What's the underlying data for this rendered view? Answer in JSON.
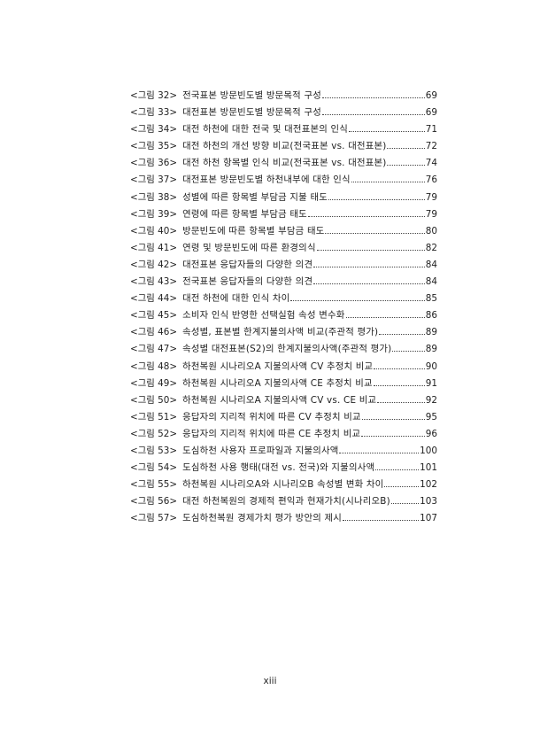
{
  "entries": [
    {
      "label": "<그림 32>",
      "title": "전국표본 방문빈도별 방문목적 구성",
      "page": "69"
    },
    {
      "label": "<그림 33>",
      "title": "대전표본 방문빈도별 방문목적 구성",
      "page": "69"
    },
    {
      "label": "<그림 34>",
      "title": "대전 하천에 대한 전국 및 대전표본의 인식",
      "page": "71"
    },
    {
      "label": "<그림 35>",
      "title": "대전 하천의 개선 방향 비교(전국표본 vs. 대전표본)",
      "page": "72"
    },
    {
      "label": "<그림 36>",
      "title": "대전 하천 항목별 인식 비교(전국표본 vs. 대전표본)",
      "page": "74"
    },
    {
      "label": "<그림 37>",
      "title": "대전표본 방문빈도별 하천내부에 대한 인식",
      "page": "76"
    },
    {
      "label": "<그림 38>",
      "title": "성별에 따른 항목별 부담금 지불 태도",
      "page": "79"
    },
    {
      "label": "<그림 39>",
      "title": "연령에 따른 항목별 부담금 태도",
      "page": "79"
    },
    {
      "label": "<그림 40>",
      "title": "방문빈도에 따른 항목별 부담금 태도",
      "page": "80"
    },
    {
      "label": "<그림 41>",
      "title": "연령 및 방문빈도에 따른 환경의식",
      "page": "82"
    },
    {
      "label": "<그림 42>",
      "title": "대전표본 응답자들의 다양한 의견",
      "page": "84"
    },
    {
      "label": "<그림 43>",
      "title": "전국표본 응답자들의 다양한 의견",
      "page": "84"
    },
    {
      "label": "<그림 44>",
      "title": "대전 하천에 대한 인식 차이",
      "page": "85"
    },
    {
      "label": "<그림 45>",
      "title": "소비자 인식 반영한 선택실험 속성 변수화",
      "page": "86"
    },
    {
      "label": "<그림 46>",
      "title": "속성별, 표본별 한계지불의사액 비교(주관적 평가)",
      "page": "89"
    },
    {
      "label": "<그림 47>",
      "title": "속성별 대전표본(S2)의 한계지불의사액(주관적 평가)",
      "page": "89"
    },
    {
      "label": "<그림 48>",
      "title": "하천복원 시나리오A 지불의사액 CV 추정치 비교",
      "page": "90"
    },
    {
      "label": "<그림 49>",
      "title": "하천복원 시나리오A 지불의사액 CE 추정치 비교",
      "page": "91"
    },
    {
      "label": "<그림 50>",
      "title": "하천복원 시나리오A 지불의사액 CV vs. CE 비교",
      "page": "92"
    },
    {
      "label": "<그림 51>",
      "title": "응답자의 지리적 위치에 따른 CV 추정치 비교",
      "page": "95"
    },
    {
      "label": "<그림 52>",
      "title": "응답자의 지리적 위치에 따른 CE 추정치 비교",
      "page": "96"
    },
    {
      "label": "<그림 53>",
      "title": "도심하천 사용자 프로파일과 지불의사액",
      "page": "100"
    },
    {
      "label": "<그림 54>",
      "title": "도심하천 사용 행태(대전 vs. 전국)와 지불의사액",
      "page": "101"
    },
    {
      "label": "<그림 55>",
      "title": "하천복원 시나리오A와 시나리오B 속성별 변화 차이",
      "page": "102"
    },
    {
      "label": "<그림 56>",
      "title": "대전 하천복원의 경제적 편익과 현재가치(시나리오B)",
      "page": "103"
    },
    {
      "label": "<그림 57>",
      "title": "도심하천복원 경제가치 평가 방안의 제시",
      "page": "107"
    }
  ],
  "footer": {
    "page_number": "xiii"
  }
}
